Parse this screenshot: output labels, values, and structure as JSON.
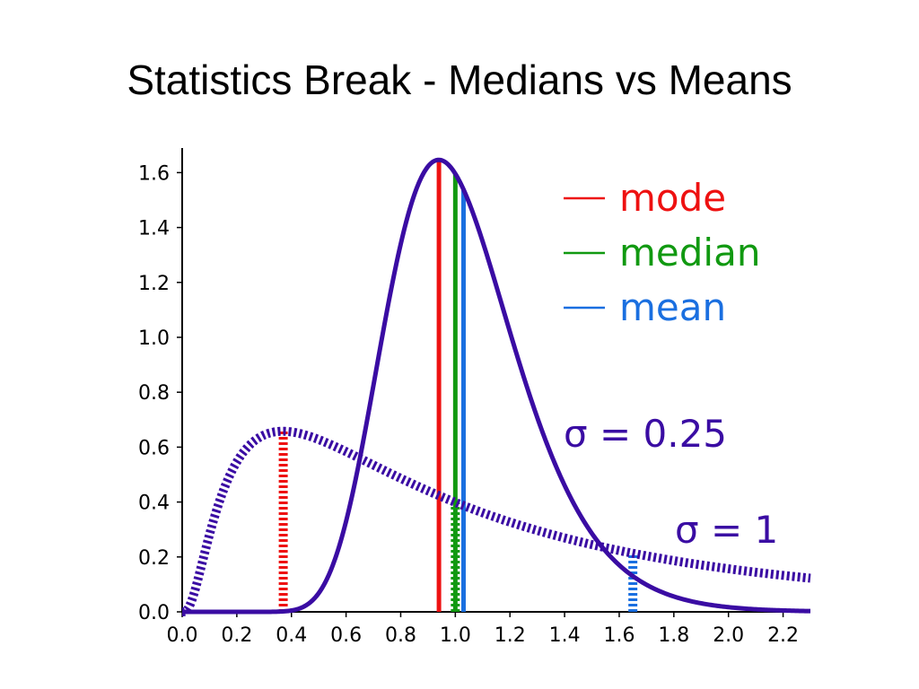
{
  "slide": {
    "title": "Statistics Break - Medians vs Means"
  },
  "chart_data": {
    "type": "line",
    "title": "",
    "xlabel": "",
    "ylabel": "",
    "xlim": [
      0.0,
      2.3
    ],
    "ylim": [
      0.0,
      1.7
    ],
    "xticks": [
      "0.0",
      "0.2",
      "0.4",
      "0.6",
      "0.8",
      "1.0",
      "1.2",
      "1.4",
      "1.6",
      "1.8",
      "2.0",
      "2.2"
    ],
    "yticks": [
      "0.0",
      "0.2",
      "0.4",
      "0.6",
      "0.8",
      "1.0",
      "1.2",
      "1.4",
      "1.6"
    ],
    "curve_color": "#3a0ca3",
    "series": [
      {
        "name": "σ = 0.25",
        "distribution": "lognormal",
        "mu": 0,
        "sigma": 0.25,
        "style": "solid",
        "x": [
          0.0,
          0.4,
          0.6,
          0.8,
          0.9,
          0.94,
          1.0,
          1.2,
          1.4,
          1.6,
          1.8,
          2.0,
          2.2,
          2.3
        ],
        "y": [
          0.0,
          0.01,
          0.29,
          1.22,
          1.58,
          1.65,
          1.6,
          0.92,
          0.34,
          0.1,
          0.03,
          0.01,
          0.0,
          0.0
        ]
      },
      {
        "name": "σ = 1",
        "distribution": "lognormal",
        "mu": 0,
        "sigma": 1,
        "style": "dotted",
        "x": [
          0.0,
          0.1,
          0.2,
          0.37,
          0.5,
          0.8,
          1.0,
          1.2,
          1.5,
          1.65,
          2.0,
          2.3
        ],
        "y": [
          0.0,
          0.28,
          0.55,
          0.66,
          0.63,
          0.48,
          0.4,
          0.32,
          0.24,
          0.21,
          0.16,
          0.12
        ]
      }
    ],
    "markers": [
      {
        "kind": "mode",
        "series": "σ = 0.25",
        "x": 0.94,
        "color": "#ee1111",
        "style": "solid"
      },
      {
        "kind": "median",
        "series": "σ = 0.25",
        "x": 1.0,
        "color": "#119911",
        "style": "solid"
      },
      {
        "kind": "mean",
        "series": "σ = 0.25",
        "x": 1.03,
        "color": "#1a6fe0",
        "style": "solid"
      },
      {
        "kind": "mode",
        "series": "σ = 1",
        "x": 0.37,
        "color": "#ee1111",
        "style": "dotted"
      },
      {
        "kind": "median",
        "series": "σ = 1",
        "x": 1.0,
        "color": "#119911",
        "style": "dotted"
      },
      {
        "kind": "mean",
        "series": "σ = 1",
        "x": 1.65,
        "color": "#1a6fe0",
        "style": "dotted"
      }
    ],
    "legend": {
      "placement": "top-right",
      "entries": [
        {
          "label": "mode",
          "color": "#ee1111"
        },
        {
          "label": "median",
          "color": "#119911"
        },
        {
          "label": "mean",
          "color": "#1a6fe0"
        }
      ]
    },
    "annotations": [
      {
        "text": "σ = 0.25",
        "color": "#3a0ca3"
      },
      {
        "text": "σ = 1",
        "color": "#3a0ca3"
      }
    ]
  }
}
